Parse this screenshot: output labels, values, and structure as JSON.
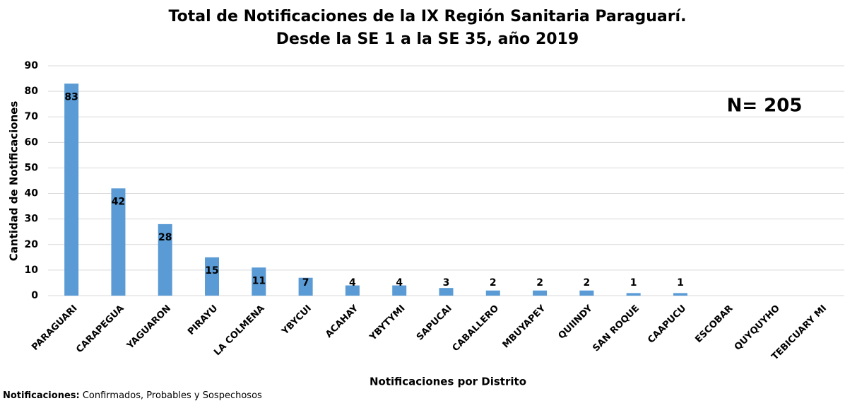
{
  "chart_data": {
    "type": "bar",
    "title": "Total de Notificaciones de la IX Región Sanitaria Paraguarí.",
    "subtitle": "Desde la SE 1 a la SE 35, año 2019",
    "x_label": "Notificaciones por Distrito",
    "y_label": "Cantidad de Notificaciones",
    "annotation": "N= 205",
    "footnote_label": "Notificaciones:",
    "footnote_text": "Confirmados, Probables y Sospechosos",
    "categories": [
      "PARAGUARI",
      "CARAPEGUA",
      "YAGUARON",
      "PIRAYU",
      "LA COLMENA",
      "YBYCUI",
      "ACAHAY",
      "YBYTYMI",
      "SAPUCAI",
      "CABALLERO",
      "MBUYAPEY",
      "QUIINDY",
      "SAN ROQUE",
      "CAAPUCU",
      "ESCOBAR",
      "QUYQUYHO",
      "TEBICUARY MI"
    ],
    "values": [
      83,
      42,
      28,
      15,
      11,
      7,
      4,
      4,
      3,
      2,
      2,
      2,
      1,
      1,
      null,
      null,
      null
    ],
    "color": "#5b9bd5",
    "ylim": [
      0,
      90
    ],
    "yticks": [
      0,
      10,
      20,
      30,
      40,
      50,
      60,
      70,
      80,
      90
    ],
    "grid": true
  }
}
